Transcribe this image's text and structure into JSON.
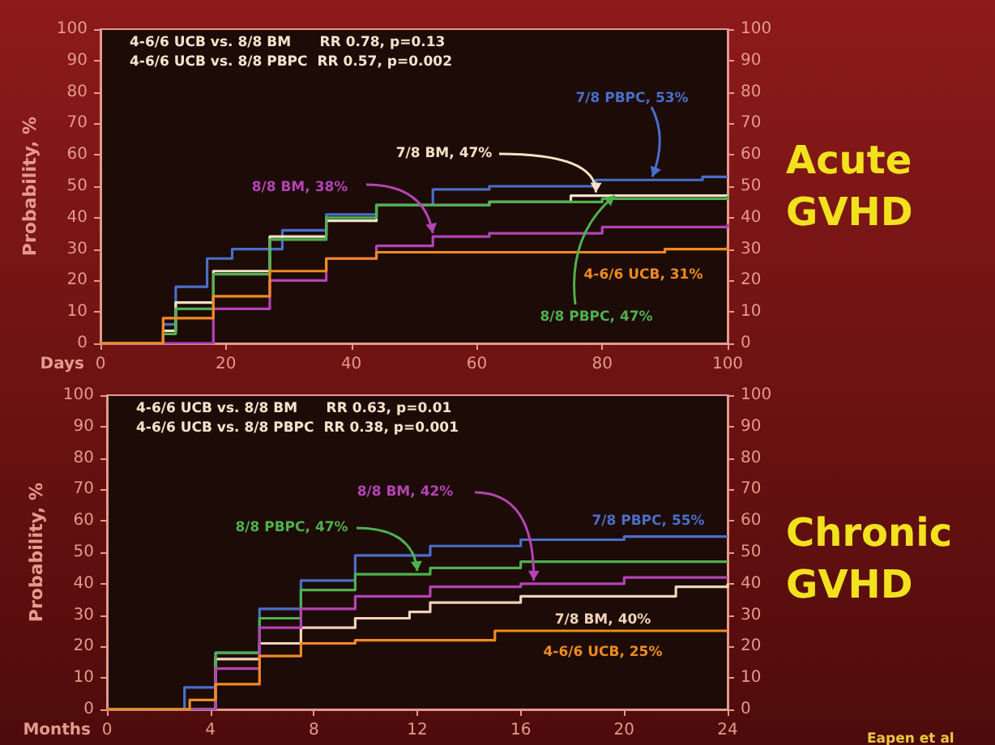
{
  "chart_data": [
    {
      "type": "step",
      "title": "Acute GVHD",
      "xlabel": "Days",
      "ylabel": "Probability, %",
      "annotations": [
        "4-6/6 UCB vs. 8/8 BM      RR 0.78, p=0.13",
        "4-6/6 UCB vs. 8/8 PBPC  RR 0.57, p=0.002"
      ],
      "xlim": [
        0,
        100
      ],
      "xticks": [
        0,
        20,
        40,
        60,
        80,
        100
      ],
      "ylim": [
        0,
        100
      ],
      "yticks": [
        0,
        10,
        20,
        30,
        40,
        50,
        60,
        70,
        80,
        90,
        100
      ],
      "y2lim": [
        0,
        100
      ],
      "y2ticks": [
        0,
        10,
        20,
        30,
        40,
        50,
        60,
        70,
        80,
        90,
        100
      ],
      "series": [
        {
          "name": "7/8 PBPC, 53%",
          "color": "#4a6fc8",
          "x": [
            0,
            9,
            10,
            12,
            17,
            21,
            29,
            36,
            44,
            53,
            62,
            79,
            96,
            100
          ],
          "values": [
            0,
            0,
            6,
            18,
            27,
            30,
            36,
            41,
            44,
            49,
            50,
            52,
            53,
            53
          ]
        },
        {
          "name": "7/8 BM, 47%",
          "color": "#f2e2c4",
          "x": [
            0,
            9,
            10,
            12,
            18,
            27,
            36,
            44,
            62,
            75,
            100
          ],
          "values": [
            0,
            0,
            4,
            13,
            23,
            34,
            39,
            44,
            45,
            47,
            47
          ]
        },
        {
          "name": "8/8 PBPC, 47%",
          "color": "#4fb04f",
          "x": [
            0,
            9,
            10,
            12,
            18,
            27,
            36,
            44,
            62,
            80,
            100
          ],
          "values": [
            0,
            0,
            3,
            11,
            22,
            33,
            40,
            44,
            45,
            46,
            47
          ]
        },
        {
          "name": "8/8 BM, 38%",
          "color": "#b543b5",
          "x": [
            0,
            12,
            18,
            27,
            36,
            44,
            53,
            62,
            80,
            100
          ],
          "values": [
            0,
            0,
            11,
            20,
            27,
            31,
            34,
            35,
            37,
            38
          ]
        },
        {
          "name": "4-6/6 UCB, 31%",
          "color": "#f08a22",
          "x": [
            0,
            5,
            10,
            18,
            27,
            36,
            44,
            70,
            90,
            100
          ],
          "values": [
            0,
            0,
            8,
            15,
            23,
            27,
            29,
            29,
            30,
            31
          ]
        }
      ]
    },
    {
      "type": "step",
      "title": "Chronic GVHD",
      "xlabel": "Months",
      "ylabel": "Probability, %",
      "annotations": [
        "4-6/6 UCB vs. 8/8 BM      RR 0.63, p=0.01",
        "4-6/6 UCB vs. 8/8 PBPC  RR 0.38, p=0.001",
        "Eapen et al"
      ],
      "xlim": [
        0,
        24
      ],
      "xticks": [
        0,
        4,
        8,
        12,
        16,
        20,
        24
      ],
      "ylim": [
        0,
        100
      ],
      "yticks": [
        0,
        10,
        20,
        30,
        40,
        50,
        60,
        70,
        80,
        90,
        100
      ],
      "y2lim": [
        0,
        100
      ],
      "y2ticks": [
        0,
        10,
        20,
        30,
        40,
        50,
        60,
        70,
        80,
        90,
        100
      ],
      "series": [
        {
          "name": "7/8 PBPC, 55%",
          "color": "#4a6fc8",
          "x": [
            0,
            2.5,
            3,
            4.2,
            5.9,
            7.5,
            9.6,
            12.5,
            16,
            20,
            24
          ],
          "values": [
            0,
            0,
            7,
            18,
            32,
            41,
            49,
            52,
            54,
            55,
            55
          ]
        },
        {
          "name": "7/8 BM, 40%",
          "color": "#f2d2b8",
          "x": [
            0,
            3,
            4.2,
            5.9,
            7.5,
            9.6,
            11.7,
            12.5,
            16,
            18,
            22,
            24
          ],
          "values": [
            0,
            0,
            16,
            21,
            26,
            29,
            31,
            34,
            36,
            36,
            39,
            40
          ]
        },
        {
          "name": "8/8 PBPC, 47%",
          "color": "#4fb04f",
          "x": [
            0,
            3,
            4.2,
            5.9,
            7.5,
            9.6,
            12.5,
            16,
            24
          ],
          "values": [
            0,
            0,
            18,
            29,
            38,
            43,
            45,
            47,
            47
          ]
        },
        {
          "name": "8/8 BM, 42%",
          "color": "#b543b5",
          "x": [
            0,
            3,
            4.2,
            5.9,
            7.5,
            9.6,
            12.5,
            16,
            20,
            24
          ],
          "values": [
            0,
            0,
            13,
            26,
            32,
            36,
            39,
            40,
            42,
            42
          ]
        },
        {
          "name": "4-6/6 UCB, 25%",
          "color": "#f08a22",
          "x": [
            0,
            3,
            3.2,
            4.2,
            5.9,
            7.5,
            9.6,
            15,
            24
          ],
          "values": [
            0,
            0,
            3,
            8,
            17,
            21,
            22,
            25,
            25
          ]
        }
      ]
    }
  ]
}
